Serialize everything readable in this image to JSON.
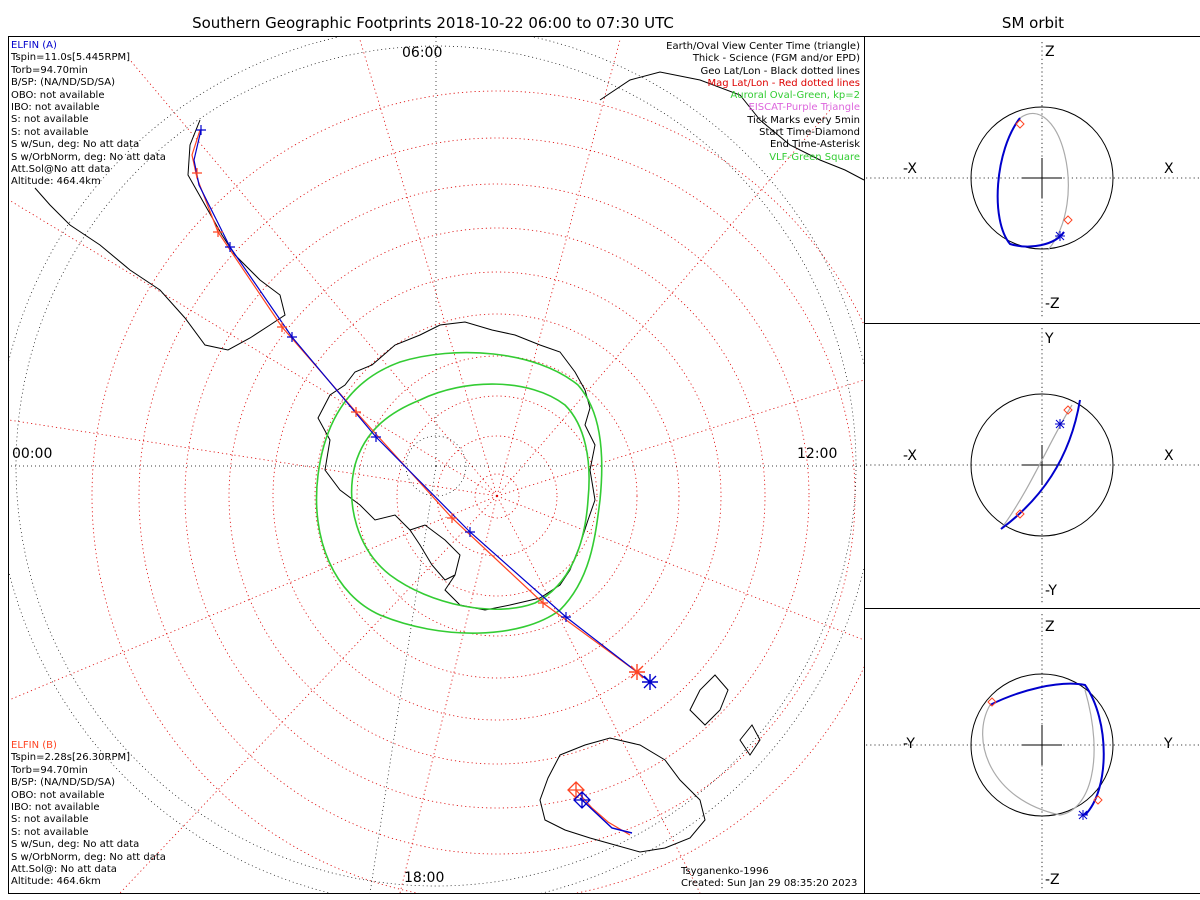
{
  "title": "Southern Geographic Footprints 2018-10-22 06:00 to 07:30 UTC",
  "sm_title": "SM orbit",
  "clock_labels": {
    "top": "06:00",
    "left": "00:00",
    "right": "12:00",
    "bottom": "18:00"
  },
  "elfin_a": {
    "header": "ELFIN (A)",
    "lines": [
      "Tspin=11.0s[5.445RPM]",
      "Torb=94.70min",
      "B/SP: (NA/ND/SD/SA)",
      "OBO: not available",
      "IBO: not available",
      "S: not available",
      "S: not available",
      "S w/Sun, deg: No att data",
      "S w/OrbNorm, deg: No att data",
      "Att.Sol@No att data",
      "Altitude: 464.4km"
    ],
    "color": "#0000cc"
  },
  "elfin_b": {
    "header": "ELFIN (B)",
    "lines": [
      "Tspin=2.28s[26.30RPM]",
      "Torb=94.70min",
      "B/SP: (NA/ND/SD/SA)",
      "OBO: not available",
      "IBO: not available",
      "S: not available",
      "S: not available",
      "S w/Sun, deg: No att data",
      "S w/OrbNorm, deg: No att data",
      "Att.Sol@: No att data",
      "Altitude: 464.6km"
    ],
    "color": "#ff4422"
  },
  "legend": [
    {
      "text": "Earth/Oval View Center Time (triangle)",
      "color": "#000000"
    },
    {
      "text": "Thick - Science (FGM and/or EPD)",
      "color": "#000000"
    },
    {
      "text": "Geo Lat/Lon - Black dotted lines",
      "color": "#000000"
    },
    {
      "text": "Mag Lat/Lon - Red dotted lines",
      "color": "#dd0000"
    },
    {
      "text": "Auroral Oval-Green, kp=2",
      "color": "#33cc33"
    },
    {
      "text": "EISCAT-Purple Triangle",
      "color": "#dd66dd"
    },
    {
      "text": "Tick Marks every 5min",
      "color": "#000000"
    },
    {
      "text": "Start Time-Diamond",
      "color": "#000000"
    },
    {
      "text": "End Time-Asterisk",
      "color": "#000000"
    },
    {
      "text": "VLF-Green Square",
      "color": "#33cc33"
    }
  ],
  "footer": {
    "model": "Tsyganenko-1996",
    "created": "Created: Sun Jan 29 08:35:20 2023"
  },
  "sm_panels": [
    {
      "top": "Z",
      "bottom": "-Z",
      "left": "-X",
      "right": "X"
    },
    {
      "top": "Y",
      "bottom": "-Y",
      "left": "-X",
      "right": "X"
    },
    {
      "top": "Z",
      "bottom": "-Z",
      "left": "-Y",
      "right": "Y"
    }
  ],
  "colors": {
    "auroral_oval": "#33cc33",
    "mag_grid": "#dd0000",
    "geo_grid": "#000000",
    "track_a": "#0000cc",
    "track_b": "#ff4422"
  }
}
